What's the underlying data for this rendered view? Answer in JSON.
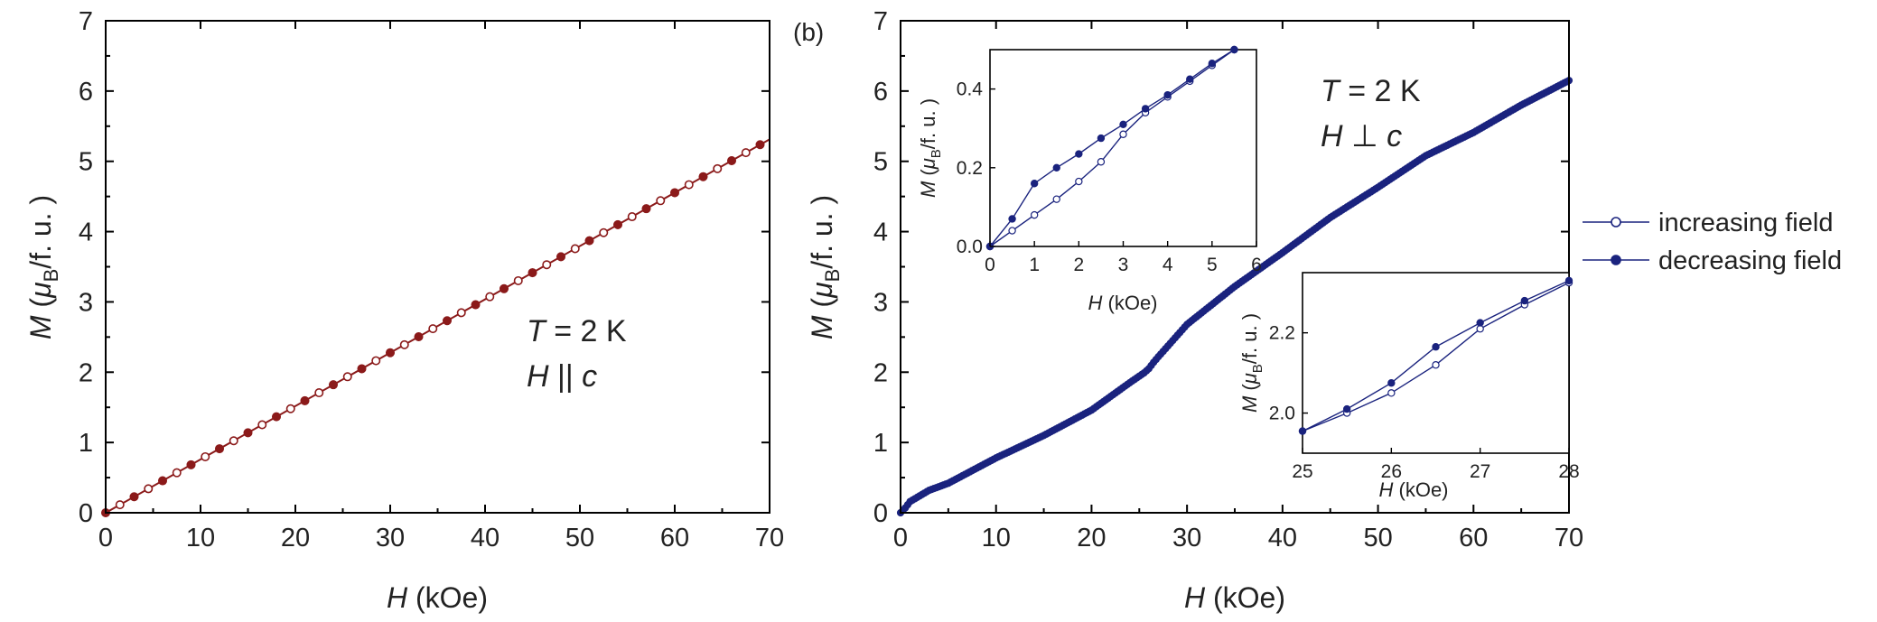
{
  "chart_data": [
    {
      "id": "a",
      "type": "scatter",
      "title": "",
      "xlabel": {
        "sym": "H",
        "unit": "(kOe)"
      },
      "ylabel": {
        "sym": "M",
        "unit_pre": "(",
        "mu": "μ",
        "sub": "B",
        "unit_post": "/f. u. )"
      },
      "xlim": [
        0,
        70
      ],
      "ylim": [
        0,
        7
      ],
      "xticks": [
        "0",
        "10",
        "20",
        "30",
        "40",
        "50",
        "60",
        "70"
      ],
      "yticks": [
        "0",
        "1",
        "2",
        "3",
        "4",
        "5",
        "6",
        "7"
      ],
      "annotation": {
        "line1_sym": "T",
        "line1_rest": " = 2 K",
        "line2_sym": "H",
        "line2_op": " || ",
        "line2_sym2": "c"
      },
      "color": "#8B1A1A",
      "series": [
        {
          "name": "increasing field",
          "marker": "open-circle",
          "slope": 0.0759,
          "x_start": 0,
          "x_end": 70,
          "step": 1.5
        },
        {
          "name": "decreasing field",
          "marker": "filled-circle",
          "slope": 0.0759,
          "x_start": 0,
          "x_end": 70,
          "step": 3
        }
      ]
    },
    {
      "id": "b",
      "panel_label": "(b)",
      "type": "scatter",
      "title": "",
      "xlabel": {
        "sym": "H",
        "unit": "(kOe)"
      },
      "ylabel": {
        "sym": "M",
        "unit_pre": "(",
        "mu": "μ",
        "sub": "B",
        "unit_post": "/f. u. )"
      },
      "xlim": [
        0,
        70
      ],
      "ylim": [
        0,
        7
      ],
      "xticks": [
        "0",
        "10",
        "20",
        "30",
        "40",
        "50",
        "60",
        "70"
      ],
      "yticks": [
        "0",
        "1",
        "2",
        "3",
        "4",
        "5",
        "6",
        "7"
      ],
      "annotation": {
        "line1_sym": "T",
        "line1_rest": " = 2 K",
        "line2_sym": "H",
        "line2_op": " ⊥ ",
        "line2_sym2": "c"
      },
      "color": "#1A237E",
      "curve": [
        [
          0,
          0
        ],
        [
          0.5,
          0.07
        ],
        [
          1,
          0.16
        ],
        [
          2,
          0.24
        ],
        [
          3,
          0.32
        ],
        [
          5,
          0.42
        ],
        [
          10,
          0.78
        ],
        [
          15,
          1.1
        ],
        [
          20,
          1.46
        ],
        [
          24,
          1.85
        ],
        [
          25.5,
          1.99
        ],
        [
          26,
          2.05
        ],
        [
          26.5,
          2.14
        ],
        [
          27,
          2.22
        ],
        [
          30,
          2.68
        ],
        [
          35,
          3.22
        ],
        [
          40,
          3.7
        ],
        [
          45,
          4.2
        ],
        [
          50,
          4.63
        ],
        [
          55,
          5.08
        ],
        [
          60,
          5.41
        ],
        [
          65,
          5.8
        ],
        [
          70,
          6.15
        ]
      ],
      "series": [
        {
          "name": "increasing field",
          "marker": "open-circle"
        },
        {
          "name": "decreasing field",
          "marker": "filled-circle"
        }
      ],
      "insets": [
        {
          "id": "low-field",
          "xlabel": {
            "sym": "H",
            "unit": "(kOe)"
          },
          "ylabel": {
            "sym": "M",
            "unit_pre": "(",
            "mu": "μ",
            "sub": "B",
            "unit_post": "/f. u. )"
          },
          "xlim": [
            0,
            6
          ],
          "ylim": [
            0,
            0.5
          ],
          "xticks": [
            0,
            1,
            2,
            3,
            4,
            5,
            6
          ],
          "xtick_labels": [
            "0",
            "1",
            "2",
            "3",
            "4",
            "5",
            "6"
          ],
          "yticks": [
            0,
            0.2,
            0.4
          ],
          "ytick_labels": [
            "0.0",
            "0.2",
            "0.4"
          ],
          "series": [
            {
              "name": "increasing field",
              "marker": "open-circle",
              "x": [
                0,
                0.5,
                1.0,
                1.5,
                2.0,
                2.5,
                3.0,
                3.5,
                4.0,
                4.5,
                5.0,
                5.5
              ],
              "y": [
                0,
                0.04,
                0.08,
                0.12,
                0.165,
                0.215,
                0.285,
                0.34,
                0.38,
                0.42,
                0.46,
                0.5
              ]
            },
            {
              "name": "decreasing field",
              "marker": "filled-circle",
              "x": [
                0,
                0.5,
                1.0,
                1.5,
                2.0,
                2.5,
                3.0,
                3.5,
                4.0,
                4.5,
                5.0,
                5.5
              ],
              "y": [
                0,
                0.07,
                0.16,
                0.2,
                0.235,
                0.275,
                0.31,
                0.35,
                0.385,
                0.425,
                0.465,
                0.5
              ]
            }
          ]
        },
        {
          "id": "mid-field",
          "xlabel": {
            "sym": "H",
            "unit": "(kOe)"
          },
          "ylabel": {
            "sym": "M",
            "unit_pre": "(",
            "mu": "μ",
            "sub": "B",
            "unit_post": "/f. u. )"
          },
          "xlim": [
            25,
            28
          ],
          "ylim": [
            1.9,
            2.35
          ],
          "xticks": [
            25,
            26,
            27,
            28
          ],
          "xtick_labels": [
            "25",
            "26",
            "27",
            "28"
          ],
          "yticks": [
            2.0,
            2.2
          ],
          "ytick_labels": [
            "2.0",
            "2.2"
          ],
          "series": [
            {
              "name": "increasing field",
              "marker": "open-circle",
              "x": [
                25,
                25.5,
                26,
                26.5,
                27,
                27.5,
                28
              ],
              "y": [
                1.955,
                2.0,
                2.05,
                2.12,
                2.21,
                2.27,
                2.325
              ]
            },
            {
              "name": "decreasing field",
              "marker": "filled-circle",
              "x": [
                25,
                25.5,
                26,
                26.5,
                27,
                27.5,
                28
              ],
              "y": [
                1.955,
                2.01,
                2.075,
                2.165,
                2.225,
                2.28,
                2.33
              ]
            }
          ]
        }
      ]
    }
  ],
  "legend": {
    "position": "right",
    "color": "#1A237E",
    "items": [
      {
        "label": "increasing field",
        "marker": "open-circle"
      },
      {
        "label": "decreasing field",
        "marker": "filled-circle"
      }
    ]
  }
}
